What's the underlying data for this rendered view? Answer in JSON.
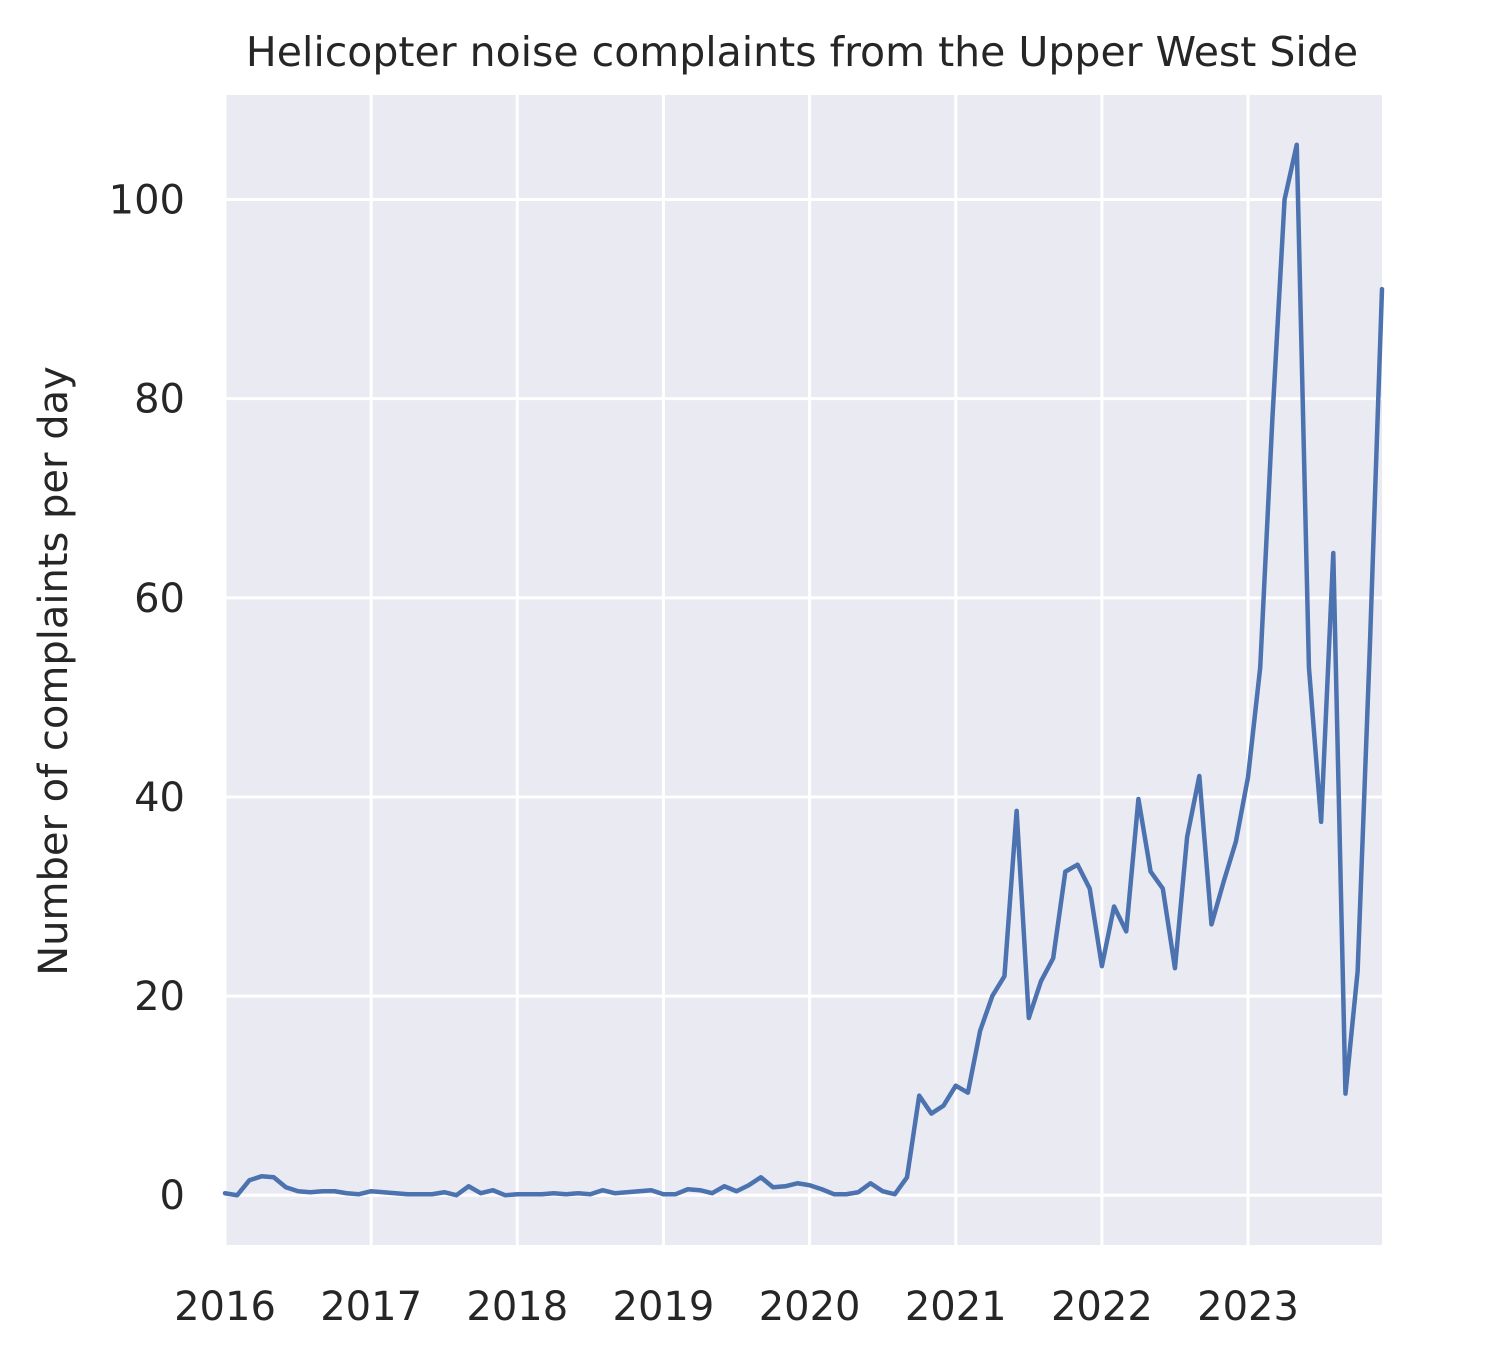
{
  "chart_data": {
    "type": "line",
    "title": "Helicopter noise complaints from the Upper West Side",
    "xlabel": "",
    "ylabel": "Number of complaints per day",
    "x_axis_type": "time",
    "xlim": [
      "2016-01",
      "2023-12"
    ],
    "ylim": [
      -5,
      110.5
    ],
    "x_ticks": [
      "2016",
      "2017",
      "2018",
      "2019",
      "2020",
      "2021",
      "2022",
      "2023"
    ],
    "y_ticks": [
      0,
      20,
      40,
      60,
      80,
      100
    ],
    "grid": true,
    "legend": "none",
    "background_color": "#eaeaf2",
    "grid_color": "#ffffff",
    "series": [
      {
        "color": "#4c72b0",
        "x": [
          "2016-01",
          "2016-02",
          "2016-03",
          "2016-04",
          "2016-05",
          "2016-06",
          "2016-07",
          "2016-08",
          "2016-09",
          "2016-10",
          "2016-11",
          "2016-12",
          "2017-01",
          "2017-02",
          "2017-03",
          "2017-04",
          "2017-05",
          "2017-06",
          "2017-07",
          "2017-08",
          "2017-09",
          "2017-10",
          "2017-11",
          "2017-12",
          "2018-01",
          "2018-02",
          "2018-03",
          "2018-04",
          "2018-05",
          "2018-06",
          "2018-07",
          "2018-08",
          "2018-09",
          "2018-10",
          "2018-11",
          "2018-12",
          "2019-01",
          "2019-02",
          "2019-03",
          "2019-04",
          "2019-05",
          "2019-06",
          "2019-07",
          "2019-08",
          "2019-09",
          "2019-10",
          "2019-11",
          "2019-12",
          "2020-01",
          "2020-02",
          "2020-03",
          "2020-04",
          "2020-05",
          "2020-06",
          "2020-07",
          "2020-08",
          "2020-09",
          "2020-10",
          "2020-11",
          "2020-12",
          "2021-01",
          "2021-02",
          "2021-03",
          "2021-04",
          "2021-05",
          "2021-06",
          "2021-07",
          "2021-08",
          "2021-09",
          "2021-10",
          "2021-11",
          "2021-12",
          "2022-01",
          "2022-02",
          "2022-03",
          "2022-04",
          "2022-05",
          "2022-06",
          "2022-07",
          "2022-08",
          "2022-09",
          "2022-10",
          "2022-11",
          "2022-12",
          "2023-01",
          "2023-02",
          "2023-03",
          "2023-04",
          "2023-05",
          "2023-06",
          "2023-07",
          "2023-08",
          "2023-09",
          "2023-10",
          "2023-11",
          "2023-12"
        ],
        "y": [
          0.2,
          0.0,
          1.5,
          1.9,
          1.8,
          0.8,
          0.4,
          0.3,
          0.4,
          0.4,
          0.2,
          0.1,
          0.4,
          0.3,
          0.2,
          0.1,
          0.1,
          0.1,
          0.3,
          0.0,
          0.9,
          0.2,
          0.5,
          0.0,
          0.1,
          0.1,
          0.1,
          0.2,
          0.1,
          0.2,
          0.1,
          0.5,
          0.2,
          0.3,
          0.4,
          0.5,
          0.1,
          0.1,
          0.6,
          0.5,
          0.2,
          0.9,
          0.4,
          1.0,
          1.8,
          0.8,
          0.9,
          1.2,
          1.0,
          0.6,
          0.1,
          0.1,
          0.3,
          1.2,
          0.4,
          0.1,
          1.8,
          10.0,
          8.2,
          9.0,
          11.0,
          10.3,
          16.5,
          20.0,
          22.0,
          38.6,
          17.8,
          21.5,
          23.8,
          32.5,
          33.2,
          30.8,
          23.0,
          29.0,
          26.5,
          39.8,
          32.5,
          30.8,
          22.8,
          36.0,
          42.1,
          27.2,
          31.5,
          35.5,
          42.0,
          53.0,
          78.0,
          100.0,
          105.5,
          53.0,
          37.5,
          64.5,
          10.2,
          22.5,
          55.0,
          91.0
        ]
      }
    ]
  }
}
